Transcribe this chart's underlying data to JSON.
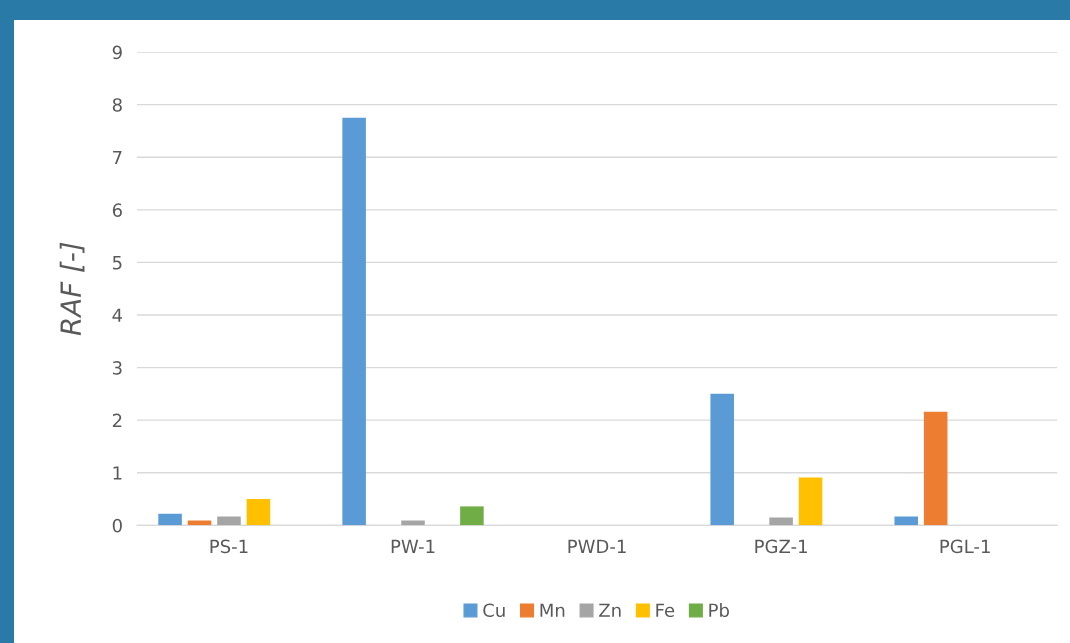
{
  "chart_data": {
    "type": "bar",
    "ylabel": "RAF [-]",
    "categories": [
      "PS-1",
      "PW-1",
      "PWD-1",
      "PGZ-1",
      "PGL-1"
    ],
    "series": [
      {
        "name": "Cu",
        "color": "#5b9bd5",
        "values": [
          0.22,
          7.75,
          0,
          2.5,
          0.17
        ]
      },
      {
        "name": "Mn",
        "color": "#ed7d31",
        "values": [
          0.09,
          0,
          0,
          0,
          2.16
        ]
      },
      {
        "name": "Zn",
        "color": "#a5a5a5",
        "values": [
          0.17,
          0.09,
          0,
          0.15,
          0
        ]
      },
      {
        "name": "Fe",
        "color": "#ffc000",
        "values": [
          0.5,
          0,
          0,
          0.91,
          0
        ]
      },
      {
        "name": "Pb",
        "color": "#70ad47",
        "values": [
          0,
          0.36,
          0,
          0,
          0
        ]
      }
    ],
    "ylim": [
      0,
      9
    ],
    "yticks": [
      0,
      1,
      2,
      3,
      4,
      5,
      6,
      7,
      8,
      9
    ],
    "grid": "y",
    "legend": "bottom"
  }
}
